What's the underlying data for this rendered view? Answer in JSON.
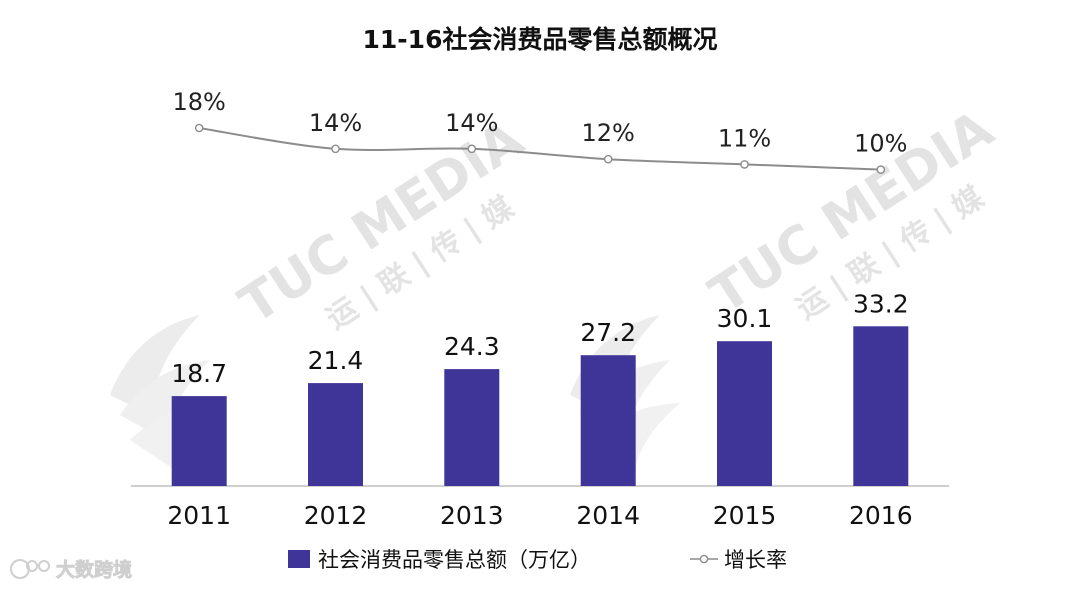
{
  "chart_data": {
    "type": "bar",
    "title": "11-16社会消费品零售总额概况",
    "categories": [
      "2011",
      "2012",
      "2013",
      "2014",
      "2015",
      "2016"
    ],
    "series": [
      {
        "name": "社会消费品零售总额（万亿）",
        "type": "bar",
        "values": [
          18.7,
          21.4,
          24.3,
          27.2,
          30.1,
          33.2
        ],
        "value_labels": [
          "18.7",
          "21.4",
          "24.3",
          "27.2",
          "30.1",
          "33.2"
        ],
        "color": "#3f3599"
      },
      {
        "name": "增长率",
        "type": "line",
        "values": [
          18,
          14,
          14,
          12,
          11,
          10
        ],
        "value_labels": [
          "18%",
          "14%",
          "14%",
          "12%",
          "11%",
          "10%"
        ],
        "color": "#8c8c8c"
      }
    ],
    "ylim": [
      0,
      40
    ],
    "grid": false,
    "legend_position": "bottom"
  },
  "watermark": {
    "brand": "TUC MEDIA",
    "cn": "运 | 联 | 传 | 媒"
  },
  "source_brand": "大数跨境",
  "colors": {
    "bar": "#3f3599",
    "line": "#8c8c8c",
    "axis": "#bfbfbf"
  }
}
